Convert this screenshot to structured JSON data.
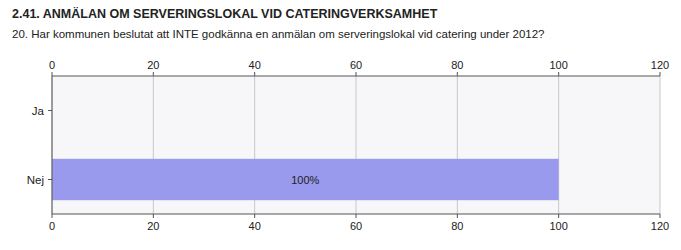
{
  "chart_data": {
    "type": "bar",
    "orientation": "horizontal",
    "title": "2.41. ANMÄLAN OM SERVERINGSLOKAL VID CATERINGVERKSAMHET",
    "subtitle": "20. Har kommunen beslutat att INTE godkänna en anmälan om serveringslokal vid catering under 2012?",
    "categories": [
      "Nej",
      "Ja"
    ],
    "values": [
      100,
      0
    ],
    "value_labels": [
      "100%",
      null
    ],
    "data_labels": true,
    "color": "#9999ee",
    "xlim": [
      0,
      120
    ],
    "xticks": [
      0,
      20,
      40,
      60,
      80,
      100,
      120
    ],
    "grid": true
  }
}
